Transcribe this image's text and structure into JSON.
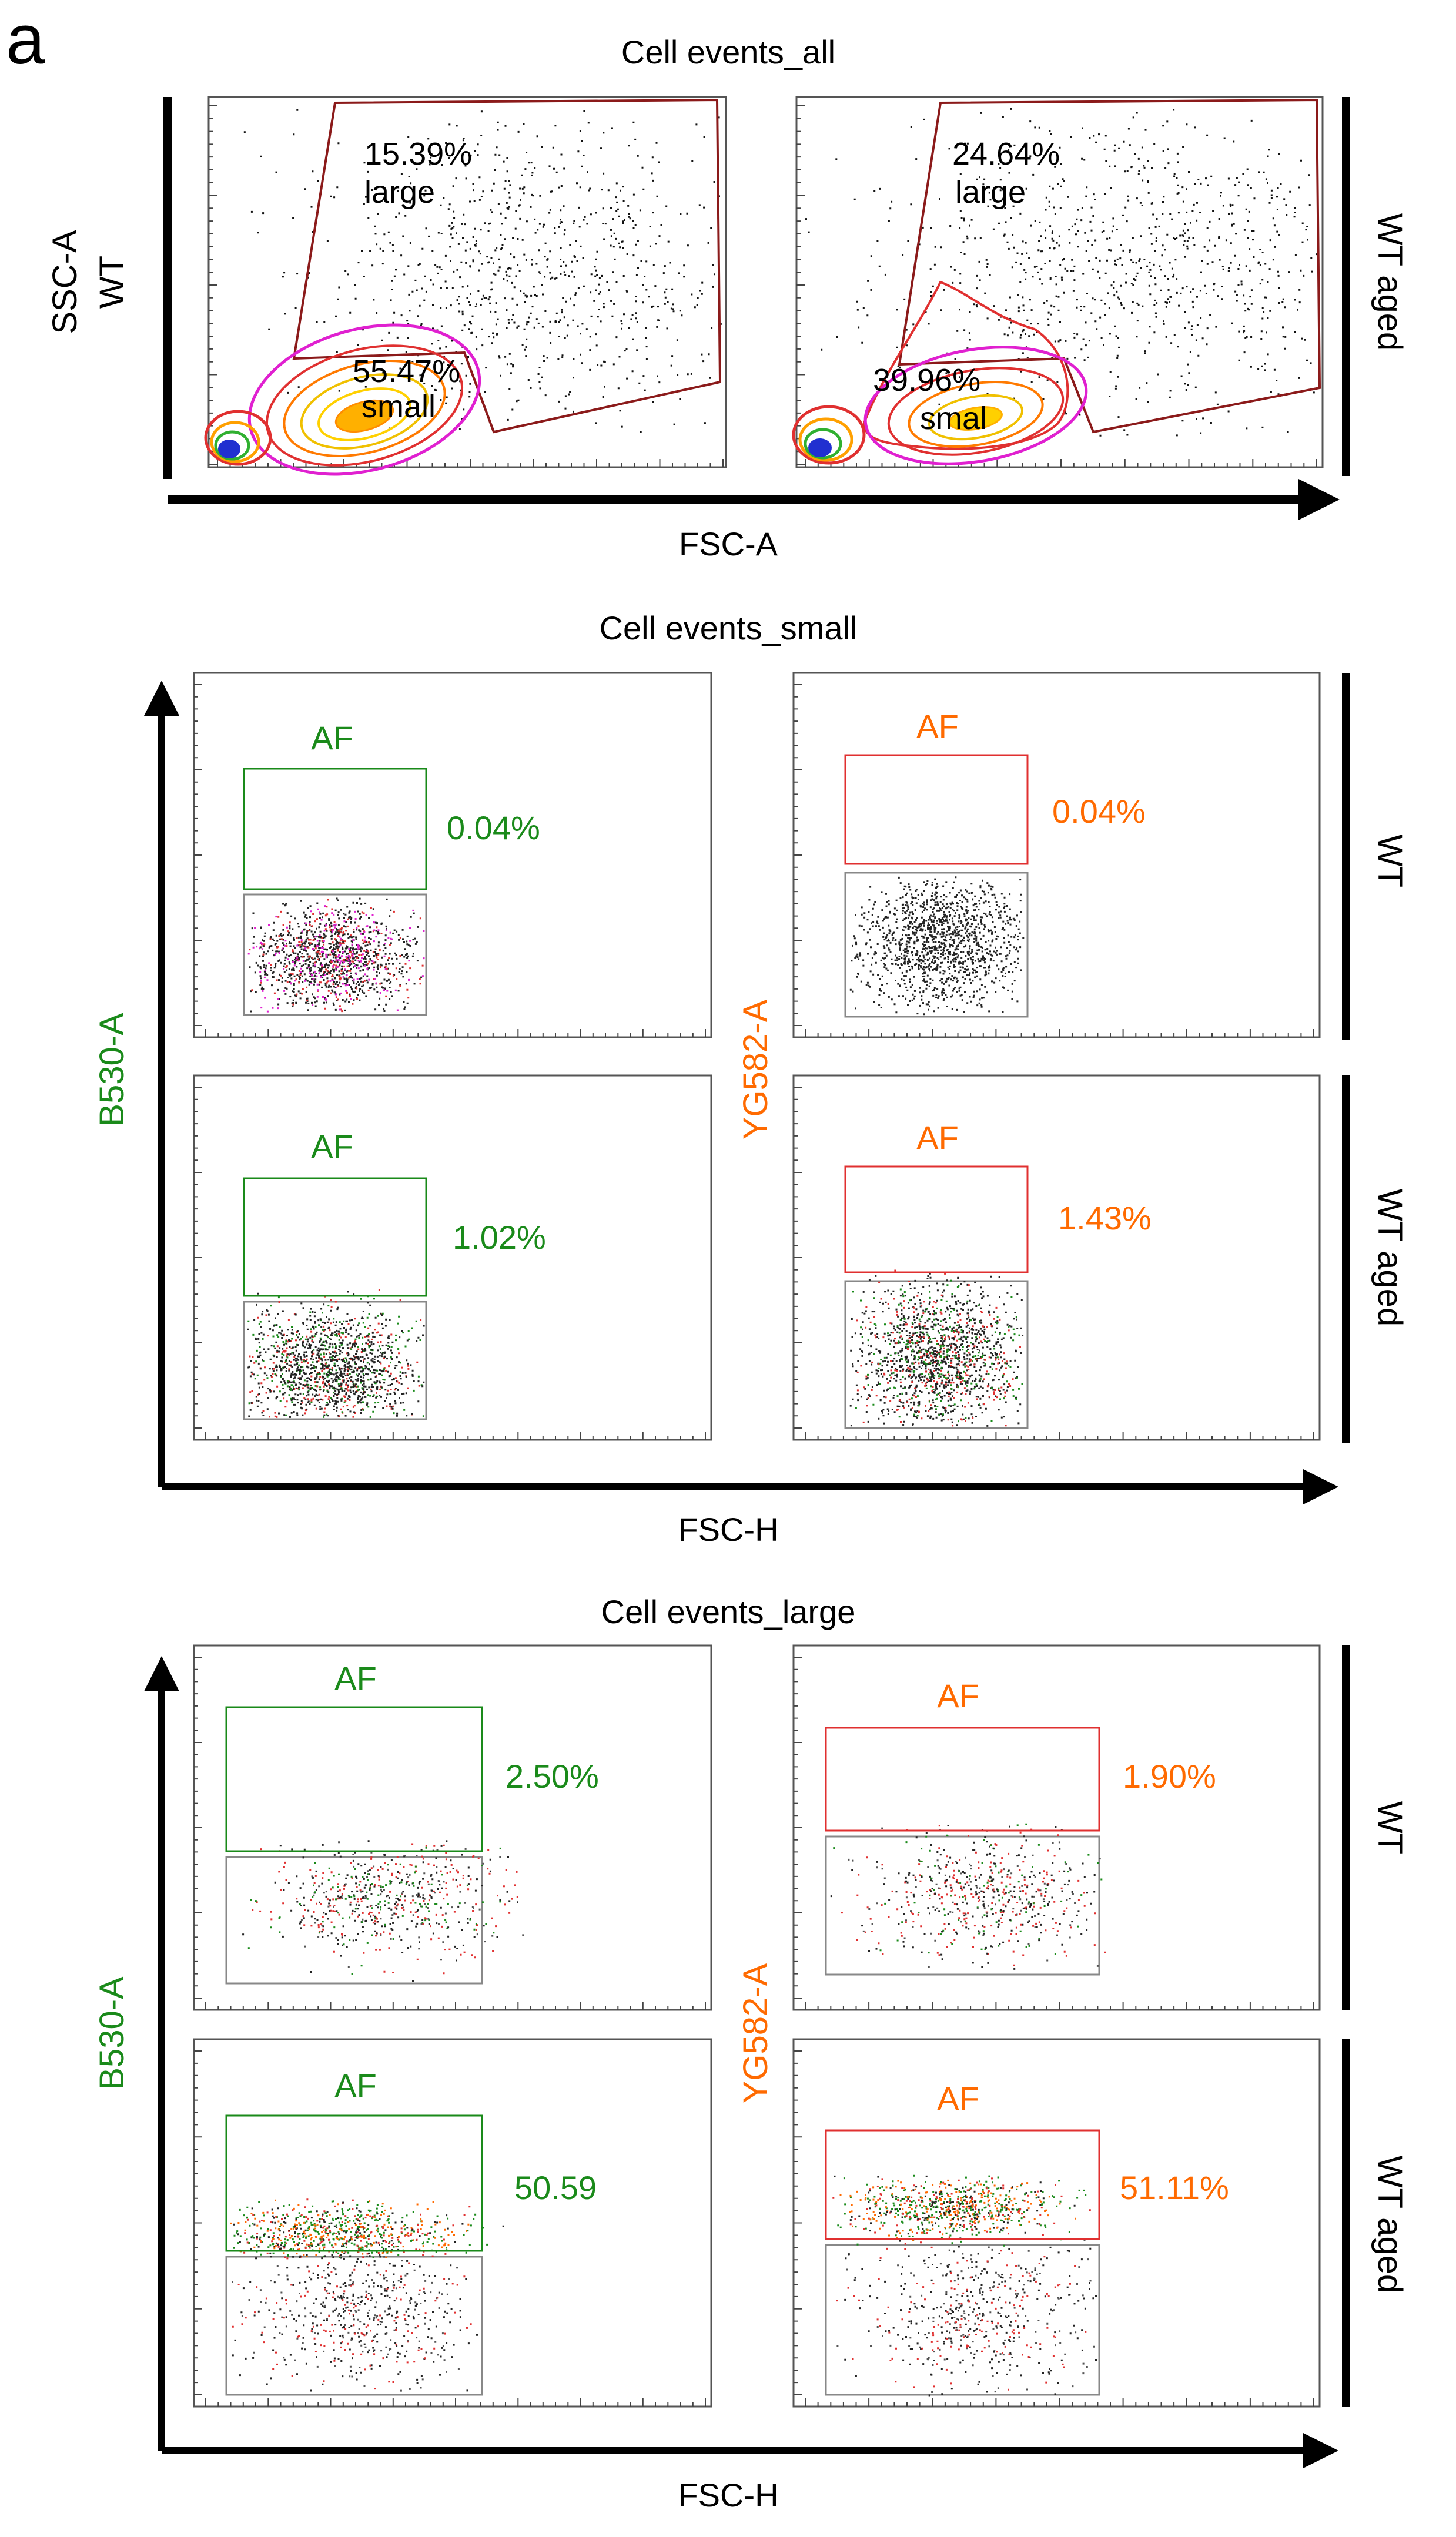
{
  "figure_label": "a",
  "colors": {
    "green": "#1a8a1a",
    "orange": "#ff6a00",
    "gate_red": "#e03030",
    "polygon_dark_red": "#8b1a1a",
    "magenta": "#e020d0",
    "dots": "#222222",
    "panel_border": "#555555",
    "events_gate_border": "#888888"
  },
  "chart_data": [
    {
      "type": "scatter",
      "title": "Cell events_all",
      "xlabel": "FSC-A",
      "ylabel": "SSC-A",
      "rows": [
        "WT",
        "WT aged"
      ],
      "gates": [
        {
          "name": "large",
          "values": {
            "WT": "15.39%",
            "WT aged": "24.64%"
          }
        },
        {
          "name": "small",
          "values": {
            "WT": "55.47%",
            "WT aged": "39.96%"
          }
        }
      ],
      "small_label_aged": "smal",
      "density_contours": true
    },
    {
      "type": "scatter",
      "title": "Cell events_small",
      "xlabel": "FSC-H",
      "ylabels": [
        "B530-A",
        "YG582-A"
      ],
      "rows": [
        "WT",
        "WT aged"
      ],
      "gate_label": "AF",
      "percent": {
        "B530-A": {
          "WT": "0.04%",
          "WT aged": "1.02%"
        },
        "YG582-A": {
          "WT": "0.04%",
          "WT aged": "1.43%"
        }
      }
    },
    {
      "type": "scatter",
      "title": "Cell events_large",
      "xlabel": "FSC-H",
      "ylabels": [
        "B530-A",
        "YG582-A"
      ],
      "rows": [
        "WT",
        "WT aged"
      ],
      "gate_label": "AF",
      "percent": {
        "B530-A": {
          "WT": "2.50%",
          "WT aged": "50.59"
        },
        "YG582-A": {
          "WT": "1.90%",
          "WT aged": "51.11%"
        }
      }
    }
  ]
}
